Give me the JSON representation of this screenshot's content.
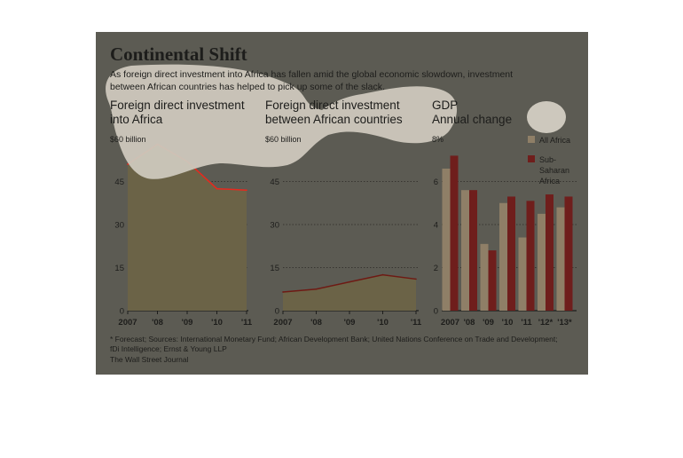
{
  "title": "Continental Shift",
  "subtitle_line1": "As foreign direct investment into Africa has fallen amid the global economic slowdown, investment",
  "subtitle_line2": "between African countries has helped to pick up some of the slack.",
  "footnote_line1": "* Forecast; Sources: International Monetary Fund; African Development Bank; United Nations Conference on Trade and Development;",
  "footnote_line2": "fDi Intelligence; Ernst & Young LLP",
  "credit": "The Wall Street Journal",
  "colors": {
    "background": "#5c5b53",
    "area_fill": "#6b6347",
    "fdi_line": "#e8281e",
    "intra_line": "#6e1a14",
    "bar_all_africa": "#8f7f67",
    "bar_sub_saharan": "#6f1e1c",
    "overlay_blob": "#cdc8bd"
  },
  "chart_data": [
    {
      "type": "area",
      "title_line1": "Foreign direct investment",
      "title_line2": "into Africa",
      "y_top_label": "$60 billion",
      "ylim": [
        0,
        60
      ],
      "yticks": [
        "0",
        "15",
        "30",
        "45"
      ],
      "categories": [
        "2007",
        "'08",
        "'09",
        "'10",
        "'11"
      ],
      "values": [
        51,
        58,
        52,
        42.5,
        42
      ]
    },
    {
      "type": "area",
      "title_line1": "Foreign direct investment",
      "title_line2": "between African countries",
      "y_top_label": "$60 billion",
      "ylim": [
        0,
        60
      ],
      "yticks": [
        "0",
        "15",
        "30",
        "45"
      ],
      "categories": [
        "2007",
        "'08",
        "'09",
        "'10",
        "'11"
      ],
      "values": [
        6.5,
        7.5,
        10,
        12.5,
        11
      ]
    },
    {
      "type": "bar",
      "title_line1": "GDP",
      "title_line2": "Annual change",
      "y_top_label": "8%",
      "ylim": [
        0,
        8
      ],
      "yticks": [
        "0",
        "2",
        "4",
        "6"
      ],
      "categories": [
        "2007",
        "'08",
        "'09",
        "'10",
        "'11",
        "'12*",
        "'13*"
      ],
      "series": [
        {
          "name": "All Africa",
          "values": [
            6.6,
            5.6,
            3.1,
            5.0,
            3.4,
            4.5,
            4.8
          ]
        },
        {
          "name": "Sub-Saharan Africa",
          "values": [
            7.2,
            5.6,
            2.8,
            5.3,
            5.1,
            5.4,
            5.3
          ]
        }
      ],
      "legend": [
        "All Africa",
        "Sub-",
        "Saharan",
        "Africa"
      ],
      "legend_position": "top-right"
    }
  ]
}
